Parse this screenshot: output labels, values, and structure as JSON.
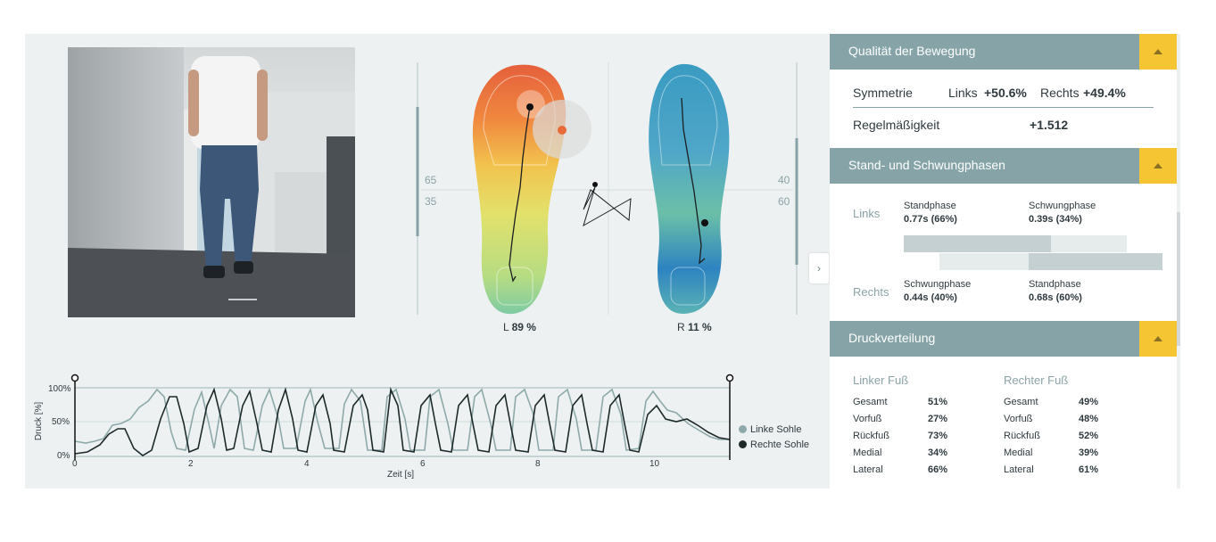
{
  "heatmap": {
    "left_label_top": "65",
    "left_label_bottom": "35",
    "right_label_top": "40",
    "right_label_bottom": "60",
    "left_prefix": "L",
    "left_value": "89 %",
    "right_prefix": "R",
    "right_value": "11 %"
  },
  "graph": {
    "y_label": "Druck [%]",
    "x_label": "Zeit [s]",
    "y_ticks": [
      "100%",
      "50%",
      "0%"
    ],
    "x_ticks": [
      "0",
      "2",
      "4",
      "6",
      "8",
      "10"
    ],
    "legend": [
      {
        "label": "Linke Sohle",
        "color": "#8ea9a9"
      },
      {
        "label": "Rechte Sohle",
        "color": "#1e2a2a"
      }
    ]
  },
  "colors": {
    "accent": "#86a4a7",
    "toggle": "#f5c533",
    "left_sole": "#8ea9a9",
    "right_sole": "#1e2a2a"
  },
  "icons": {
    "collapse": "chevron-right-icon",
    "section_toggle": "chevron-up-icon"
  },
  "collapse_glyph": "›",
  "quality": {
    "title": "Qualität der Bewegung",
    "symmetry_label": "Symmetrie",
    "links_label": "Links",
    "links_value": "+50.6%",
    "rechts_label": "Rechts",
    "rechts_value": "+49.4%",
    "regularity_label": "Regelmäßigkeit",
    "regularity_value": "+1.512"
  },
  "phases": {
    "title": "Stand- und Schwungphasen",
    "links_label": "Links",
    "rechts_label": "Rechts",
    "left_stand_label": "Standphase",
    "left_stand_value": "0.77s (66%)",
    "left_swing_label": "Schwungphase",
    "left_swing_value": "0.39s (34%)",
    "right_swing_label": "Schwungphase",
    "right_swing_value": "0.44s (40%)",
    "right_stand_label": "Standphase",
    "right_stand_value": "0.68s (60%)",
    "left_stand_fraction": 0.66,
    "right_swing_fraction": 0.4
  },
  "pressure": {
    "title": "Druckverteilung",
    "left_title": "Linker Fuß",
    "right_title": "Rechter Fuß",
    "left": [
      {
        "label": "Gesamt",
        "value": "51%"
      },
      {
        "label": "Vorfuß",
        "value": "27%"
      },
      {
        "label": "Rückfuß",
        "value": "73%"
      },
      {
        "label": "Medial",
        "value": "34%"
      },
      {
        "label": "Lateral",
        "value": "66%"
      }
    ],
    "right": [
      {
        "label": "Gesamt",
        "value": "49%"
      },
      {
        "label": "Vorfuß",
        "value": "48%"
      },
      {
        "label": "Rückfuß",
        "value": "52%"
      },
      {
        "label": "Medial",
        "value": "39%"
      },
      {
        "label": "Lateral",
        "value": "61%"
      }
    ]
  }
}
